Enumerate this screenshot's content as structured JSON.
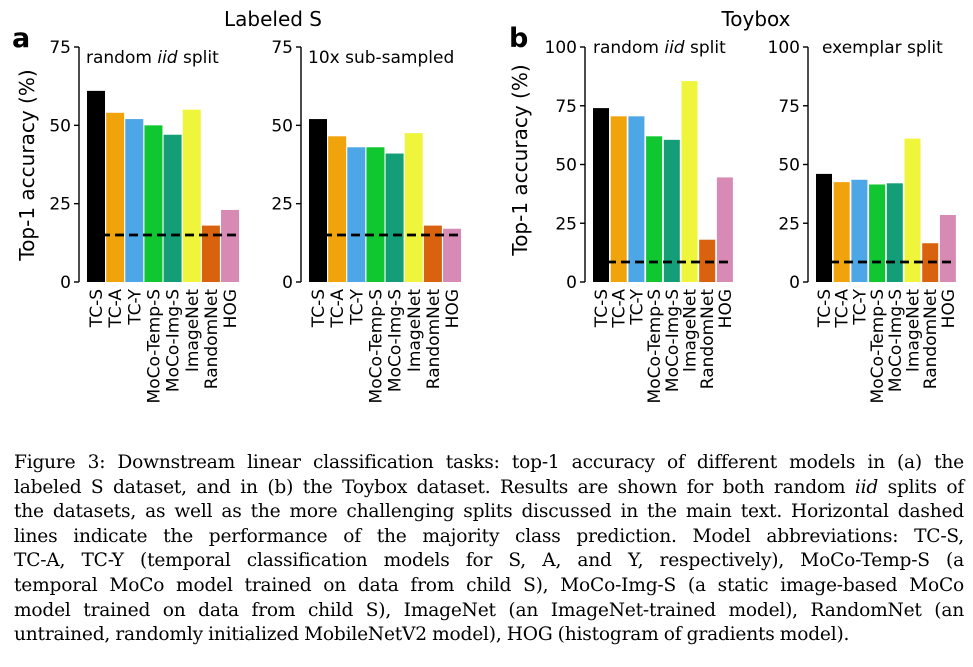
{
  "figure": {
    "panel_letters": [
      "a",
      "b"
    ],
    "group_titles": [
      "Labeled S",
      "Toybox"
    ],
    "y_axis_label": "Top-1 accuracy (%)",
    "colors": {
      "TC-S": "#000000",
      "TC-A": "#F0A30A",
      "TC-Y": "#4DA6E6",
      "MoCo-Temp-S": "#10C732",
      "MoCo-Img-S": "#149E78",
      "ImageNet": "#EEF53A",
      "RandomNet": "#D9620E",
      "HOG": "#D68AB4",
      "majority_line": "#000000"
    }
  },
  "chart_data": [
    {
      "type": "bar",
      "panel": "a",
      "subtitle_parts": [
        "random ",
        "iid",
        " split"
      ],
      "categories": [
        "TC-S",
        "TC-A",
        "TC-Y",
        "MoCo-Temp-S",
        "MoCo-Img-S",
        "ImageNet",
        "RandomNet",
        "HOG"
      ],
      "values": [
        61,
        54,
        52,
        50,
        47,
        55,
        18,
        23
      ],
      "baseline": 15,
      "ylim": [
        0,
        75
      ],
      "yticks": [
        0,
        25,
        50,
        75
      ],
      "ylabel": "Top-1 accuracy (%)"
    },
    {
      "type": "bar",
      "panel": "a",
      "subtitle_parts": [
        "10x sub-sampled"
      ],
      "categories": [
        "TC-S",
        "TC-A",
        "TC-Y",
        "MoCo-Temp-S",
        "MoCo-Img-S",
        "ImageNet",
        "RandomNet",
        "HOG"
      ],
      "values": [
        52,
        46.5,
        43,
        43,
        41,
        47.5,
        18,
        17
      ],
      "baseline": 15,
      "ylim": [
        0,
        75
      ],
      "yticks": [
        0,
        25,
        50,
        75
      ]
    },
    {
      "type": "bar",
      "panel": "b",
      "subtitle_parts": [
        "random ",
        "iid",
        " split"
      ],
      "categories": [
        "TC-S",
        "TC-A",
        "TC-Y",
        "MoCo-Temp-S",
        "MoCo-Img-S",
        "ImageNet",
        "RandomNet",
        "HOG"
      ],
      "values": [
        74,
        70.5,
        70.5,
        62,
        60.5,
        85.5,
        18,
        44.5
      ],
      "baseline": 8.5,
      "ylim": [
        0,
        100
      ],
      "yticks": [
        0,
        25,
        50,
        75,
        100
      ],
      "ylabel": "Top-1 accuracy (%)"
    },
    {
      "type": "bar",
      "panel": "b",
      "subtitle_parts": [
        "exemplar split"
      ],
      "categories": [
        "TC-S",
        "TC-A",
        "TC-Y",
        "MoCo-Temp-S",
        "MoCo-Img-S",
        "ImageNet",
        "RandomNet",
        "HOG"
      ],
      "values": [
        46,
        42.5,
        43.5,
        41.5,
        42,
        61,
        16.5,
        28.5
      ],
      "baseline": 8.5,
      "ylim": [
        0,
        100
      ],
      "yticks": [
        0,
        25,
        50,
        75,
        100
      ]
    }
  ],
  "caption": {
    "lines": [
      [
        "Figure 3: Downstream linear classification tasks: top-1 accuracy of different models in (a) the"
      ],
      [
        "labeled S dataset, and in (b) the Toybox dataset. Results are shown for both random ",
        "iid",
        " splits of"
      ],
      [
        "the datasets, as well as the more challenging splits discussed in the main text. Horizontal dashed"
      ],
      [
        "lines indicate the performance of the majority class prediction. Model abbreviations: TC-S,"
      ],
      [
        "TC-A, TC-Y (temporal classification models for S, A, and Y, respectively), MoCo-Temp-S (a"
      ],
      [
        "temporal MoCo model trained on data from child S), MoCo-Img-S (a static image-based MoCo"
      ],
      [
        "model trained on data from child S), ImageNet (an ImageNet-trained model), RandomNet (an"
      ],
      [
        "untrained, randomly initialized MobileNetV2 model), HOG (histogram of gradients model)."
      ]
    ]
  }
}
